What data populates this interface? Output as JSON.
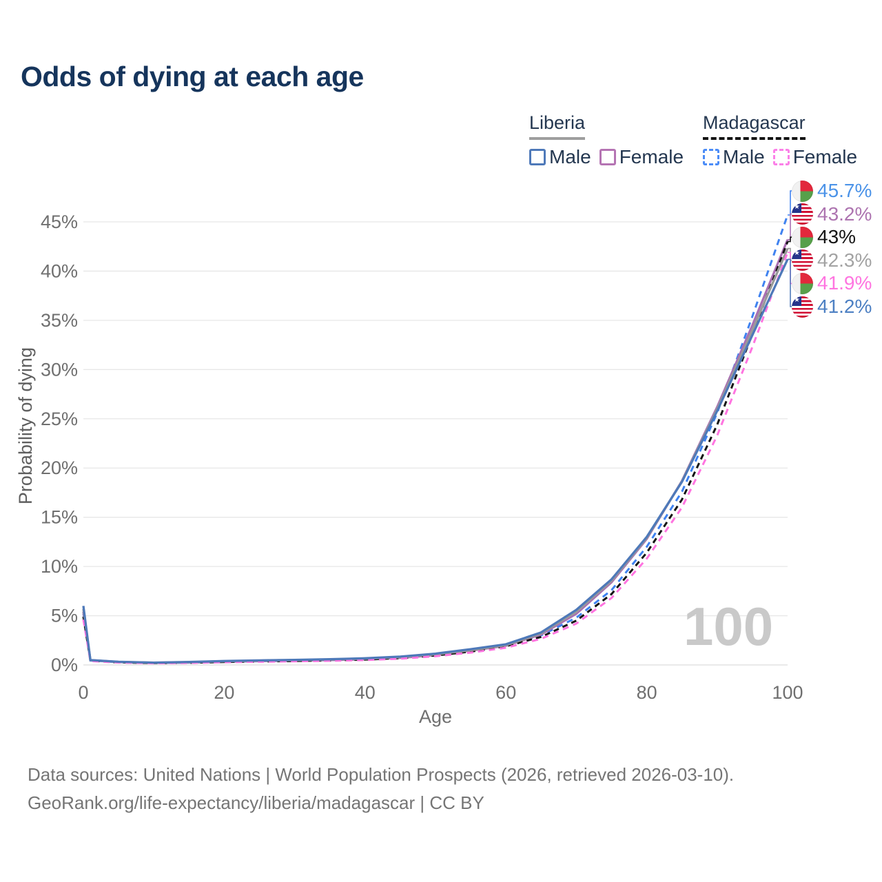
{
  "title": "Odds of dying at each age",
  "legend": {
    "groups": [
      {
        "label": "Liberia",
        "line_style": "solid",
        "underline_color": "#9e9e9e",
        "items": [
          {
            "label": "Male",
            "color": "#4e79b9"
          },
          {
            "label": "Female",
            "color": "#b574b3"
          }
        ]
      },
      {
        "label": "Madagascar",
        "line_style": "dashed",
        "underline_color": "#121212",
        "items": [
          {
            "label": "Male",
            "color": "#4b8cf7"
          },
          {
            "label": "Female",
            "color": "#fb80e8"
          }
        ]
      }
    ]
  },
  "watermark": "100",
  "source": {
    "line1": "Data sources: United Nations | World Population Prospects (2026, retrieved 2026-03-10).",
    "line2": "GeoRank.org/life-expectancy/liberia/madagascar | CC BY"
  },
  "chart_data": {
    "type": "line",
    "title": "Odds of dying at each age",
    "xlabel": "Age",
    "ylabel": "Probability of dying",
    "xlim": [
      0,
      100
    ],
    "ylim": [
      0,
      47
    ],
    "grid": "horizontal",
    "legend_position": "top-right",
    "x_ticks": [
      0,
      20,
      40,
      60,
      80,
      100
    ],
    "y_ticks": [
      {
        "v": 0,
        "label": "0%"
      },
      {
        "v": 5,
        "label": "5%"
      },
      {
        "v": 10,
        "label": "10%"
      },
      {
        "v": 15,
        "label": "15%"
      },
      {
        "v": 20,
        "label": "20%"
      },
      {
        "v": 25,
        "label": "25%"
      },
      {
        "v": 30,
        "label": "30%"
      },
      {
        "v": 35,
        "label": "35%"
      },
      {
        "v": 40,
        "label": "40%"
      },
      {
        "v": 45,
        "label": "45%"
      }
    ],
    "x": [
      0,
      1,
      5,
      10,
      15,
      20,
      25,
      30,
      35,
      40,
      45,
      50,
      55,
      60,
      65,
      70,
      75,
      80,
      85,
      90,
      95,
      100
    ],
    "series": [
      {
        "id": "madagascar-male",
        "country": "Madagascar",
        "sex": "Male",
        "color": "#3f82f0",
        "dash": "9 7",
        "end_label": "45.7%",
        "label_color": "#4b93e8",
        "flag": "madagascar",
        "values": [
          5.2,
          0.45,
          0.28,
          0.2,
          0.24,
          0.32,
          0.38,
          0.43,
          0.49,
          0.58,
          0.74,
          1.02,
          1.45,
          2.0,
          3.0,
          4.8,
          7.6,
          12.0,
          17.6,
          25.6,
          35.4,
          45.7
        ]
      },
      {
        "id": "liberia-female",
        "country": "Liberia",
        "sex": "Female",
        "color": "#a96fb2",
        "dash": "",
        "end_label": "43.2%",
        "label_color": "#ad74b0",
        "flag": "liberia",
        "values": [
          5.4,
          0.48,
          0.3,
          0.22,
          0.26,
          0.34,
          0.4,
          0.45,
          0.5,
          0.58,
          0.72,
          1.0,
          1.45,
          1.95,
          3.1,
          5.2,
          8.4,
          12.8,
          18.7,
          26.2,
          34.5,
          43.2
        ]
      },
      {
        "id": "madagascar-both",
        "country": "Madagascar",
        "sex": "Both",
        "color": "#141414",
        "dash": "8 6",
        "end_label": "43%",
        "label_color": "#141414",
        "flag": "madagascar",
        "values": [
          4.9,
          0.43,
          0.26,
          0.19,
          0.22,
          0.3,
          0.35,
          0.4,
          0.46,
          0.54,
          0.69,
          0.96,
          1.36,
          1.9,
          2.85,
          4.5,
          7.2,
          11.4,
          16.8,
          24.4,
          33.6,
          43.0
        ]
      },
      {
        "id": "liberia-both",
        "country": "Liberia",
        "sex": "Both",
        "color": "#9a9a9a",
        "dash": "",
        "end_label": "42.3%",
        "label_color": "#a3a3a3",
        "flag": "liberia",
        "values": [
          5.7,
          0.49,
          0.31,
          0.23,
          0.28,
          0.37,
          0.43,
          0.48,
          0.54,
          0.63,
          0.78,
          1.07,
          1.5,
          2.0,
          3.2,
          5.4,
          8.55,
          12.9,
          18.65,
          26.0,
          34.0,
          42.3
        ]
      },
      {
        "id": "madagascar-female",
        "country": "Madagascar",
        "sex": "Female",
        "color": "#ff74e0",
        "dash": "9 7",
        "end_label": "41.9%",
        "label_color": "#ff74e0",
        "flag": "madagascar",
        "values": [
          4.6,
          0.4,
          0.24,
          0.17,
          0.2,
          0.27,
          0.32,
          0.37,
          0.42,
          0.5,
          0.63,
          0.88,
          1.25,
          1.75,
          2.65,
          4.2,
          6.8,
          10.8,
          16.0,
          23.3,
          32.3,
          41.9
        ]
      },
      {
        "id": "liberia-male",
        "country": "Liberia",
        "sex": "Male",
        "color": "#4e79b9",
        "dash": "",
        "end_label": "41.2%",
        "label_color": "#4d80c3",
        "flag": "liberia",
        "values": [
          6.0,
          0.5,
          0.32,
          0.24,
          0.3,
          0.4,
          0.46,
          0.52,
          0.58,
          0.68,
          0.85,
          1.15,
          1.6,
          2.1,
          3.3,
          5.6,
          8.7,
          13.0,
          18.6,
          25.8,
          33.5,
          41.2
        ]
      }
    ]
  }
}
